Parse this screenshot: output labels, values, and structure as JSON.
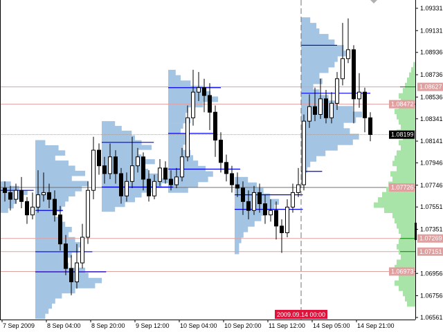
{
  "chart_data": {
    "type": "candlestick",
    "timeframe_hours": 2,
    "y_range": [
      1.06561,
      1.09331
    ],
    "grid": false,
    "colors": {
      "background": "#ffffff",
      "candle": "#000000",
      "bull_body": "#ffffff",
      "bear_body": "#000000",
      "session_profile": "#a4c4e4",
      "session_levels": "#0000ee",
      "total_profile": "#a8e4a8",
      "total_levels": "#008000",
      "level_lines": "#e0a0a0",
      "level_label_bg": "#e0a0a0",
      "current_price_bg": "#000000",
      "time_marker": "#dc143c"
    },
    "y_ticks": [
      "1.09331",
      "1.09131",
      "1.08936",
      "1.08736",
      "1.08536",
      "1.08341",
      "1.08141",
      "1.07946",
      "1.07746",
      "1.07551",
      "1.07351",
      "1.06956",
      "1.06756",
      "1.06561"
    ],
    "x_ticks": [
      {
        "label": "7 Sep 2009",
        "bar": 0
      },
      {
        "label": "8 Sep 04:00",
        "bar": 8
      },
      {
        "label": "8 Sep 20:00",
        "bar": 16
      },
      {
        "label": "9 Sep 12:00",
        "bar": 24
      },
      {
        "label": "10 Sep 04:00",
        "bar": 32
      },
      {
        "label": "10 Sep 20:00",
        "bar": 40
      },
      {
        "label": "11 Sep 12:00",
        "bar": 48
      },
      {
        "label": "14 Sep 05:00",
        "bar": 56
      },
      {
        "label": "14 Sep 21:00",
        "bar": 64
      }
    ],
    "time_marker": {
      "label": "2009.09.14 00:00",
      "bar": 53.5
    },
    "current_price": "1.08199",
    "levels": [
      {
        "price": 1.08627,
        "label": "1.08627"
      },
      {
        "price": 1.08472,
        "label": "1.08472"
      },
      {
        "price": 1.07726,
        "label": "1.07726"
      },
      {
        "price": 1.07269,
        "label": "1.07269"
      },
      {
        "price": 1.07151,
        "label": "1.07151"
      },
      {
        "price": 1.06973,
        "label": "1.06973"
      }
    ],
    "ohlc": [
      [
        1.0772,
        1.0778,
        1.076,
        1.0768
      ],
      [
        1.0768,
        1.0774,
        1.0752,
        1.0762
      ],
      [
        1.0762,
        1.0776,
        1.0758,
        1.077
      ],
      [
        1.077,
        1.0782,
        1.0754,
        1.076
      ],
      [
        1.076,
        1.0764,
        1.074,
        1.0748
      ],
      [
        1.0748,
        1.0768,
        1.0744,
        1.0755
      ],
      [
        1.0755,
        1.0788,
        1.075,
        1.0766
      ],
      [
        1.0766,
        1.0786,
        1.076,
        1.0768
      ],
      [
        1.0768,
        1.0776,
        1.0754,
        1.0762
      ],
      [
        1.0762,
        1.077,
        1.0742,
        1.0748
      ],
      [
        1.0748,
        1.0756,
        1.0716,
        1.0722
      ],
      [
        1.0722,
        1.073,
        1.0694,
        1.07
      ],
      [
        1.07,
        1.0712,
        1.0676,
        1.0688
      ],
      [
        1.0688,
        1.0722,
        1.0682,
        1.0705
      ],
      [
        1.0705,
        1.074,
        1.07,
        1.0728
      ],
      [
        1.0728,
        1.0778,
        1.0722,
        1.077
      ],
      [
        1.077,
        1.0818,
        1.0762,
        1.0806
      ],
      [
        1.0806,
        1.0812,
        1.0784,
        1.0792
      ],
      [
        1.0792,
        1.08,
        1.0776,
        1.0785
      ],
      [
        1.0785,
        1.0812,
        1.078,
        1.08
      ],
      [
        1.08,
        1.0806,
        1.0776,
        1.0785
      ],
      [
        1.0785,
        1.079,
        1.0758,
        1.0765
      ],
      [
        1.0765,
        1.0786,
        1.076,
        1.0778
      ],
      [
        1.0778,
        1.0818,
        1.0772,
        1.0792
      ],
      [
        1.0792,
        1.0808,
        1.0786,
        1.08
      ],
      [
        1.08,
        1.0804,
        1.077,
        1.078
      ],
      [
        1.078,
        1.0788,
        1.076,
        1.0765
      ],
      [
        1.0765,
        1.0784,
        1.0762,
        1.0778
      ],
      [
        1.0778,
        1.0798,
        1.0774,
        1.079
      ],
      [
        1.079,
        1.0796,
        1.0776,
        1.078
      ],
      [
        1.078,
        1.0788,
        1.077,
        1.0775
      ],
      [
        1.0775,
        1.079,
        1.0772,
        1.0782
      ],
      [
        1.0782,
        1.0808,
        1.0778,
        1.08
      ],
      [
        1.08,
        1.0846,
        1.0796,
        1.0835
      ],
      [
        1.0835,
        1.0878,
        1.0828,
        1.0858
      ],
      [
        1.0858,
        1.0876,
        1.085,
        1.0862
      ],
      [
        1.0862,
        1.087,
        1.084,
        1.0855
      ],
      [
        1.0855,
        1.0866,
        1.0824,
        1.084
      ],
      [
        1.084,
        1.0846,
        1.08,
        1.0815
      ],
      [
        1.0815,
        1.0822,
        1.0786,
        1.0795
      ],
      [
        1.0795,
        1.0802,
        1.0778,
        1.0785
      ],
      [
        1.0785,
        1.0792,
        1.0768,
        1.0775
      ],
      [
        1.0775,
        1.0786,
        1.0764,
        1.0772
      ],
      [
        1.0772,
        1.0778,
        1.0748,
        1.076
      ],
      [
        1.076,
        1.077,
        1.0744,
        1.0752
      ],
      [
        1.0752,
        1.0774,
        1.0748,
        1.0768
      ],
      [
        1.0768,
        1.0776,
        1.075,
        1.0758
      ],
      [
        1.0758,
        1.0766,
        1.074,
        1.0748
      ],
      [
        1.0748,
        1.0762,
        1.0742,
        1.0752
      ],
      [
        1.0752,
        1.076,
        1.0726,
        1.0738
      ],
      [
        1.0738,
        1.0744,
        1.0714,
        1.0732
      ],
      [
        1.0732,
        1.0762,
        1.0728,
        1.0755
      ],
      [
        1.0755,
        1.0776,
        1.075,
        1.0768
      ],
      [
        1.0768,
        1.079,
        1.0764,
        1.0775
      ],
      [
        1.0775,
        1.0838,
        1.077,
        1.0832
      ],
      [
        1.0832,
        1.0856,
        1.0826,
        1.0845
      ],
      [
        1.0845,
        1.0862,
        1.0832,
        1.0838
      ],
      [
        1.0838,
        1.087,
        1.0834,
        1.0852
      ],
      [
        1.0852,
        1.086,
        1.083,
        1.0835
      ],
      [
        1.0835,
        1.0858,
        1.083,
        1.0848
      ],
      [
        1.0848,
        1.0876,
        1.0842,
        1.087
      ],
      [
        1.087,
        1.092,
        1.0864,
        1.0888
      ],
      [
        1.0888,
        1.0924,
        1.0884,
        1.0896
      ],
      [
        1.0896,
        1.09,
        1.083,
        1.0852
      ],
      [
        1.0852,
        1.0875,
        1.0844,
        1.0858
      ],
      [
        1.0858,
        1.0862,
        1.0822,
        1.0835
      ],
      [
        1.0835,
        1.084,
        1.0814,
        1.082
      ]
    ],
    "session_profiles": [
      {
        "start_bar": -0.4,
        "top": 1.0778,
        "bottom": 1.075,
        "max_bars": 5,
        "volumes": [
          0.4,
          0.7,
          1.0,
          0.8,
          0.6,
          0.5,
          0.3
        ],
        "lines": [
          {
            "price": 1.077,
            "to_bar": 5.2
          }
        ]
      },
      {
        "start_bar": 6,
        "top": 1.0815,
        "bottom": 1.0655,
        "max_bars": 12,
        "volumes": [
          0.15,
          0.35,
          0.45,
          0.3,
          0.5,
          0.6,
          0.75,
          0.55,
          0.8,
          0.7,
          0.6,
          0.5,
          0.45,
          0.4,
          0.3,
          0.35,
          0.45,
          0.55,
          0.5,
          0.6,
          0.7,
          0.65,
          0.55,
          0.45,
          0.5,
          0.75,
          0.8,
          1.0,
          0.9,
          0.6,
          0.4,
          0.3,
          0.25,
          0.2,
          0.15
        ],
        "lines": [
          {
            "price": 1.0752,
            "to_bar": 10.5
          },
          {
            "price": 1.0715,
            "to_bar": 15.8
          },
          {
            "price": 1.0697,
            "to_bar": 18.3
          }
        ]
      },
      {
        "start_bar": 18,
        "top": 1.0832,
        "bottom": 1.0751,
        "max_bars": 12,
        "volumes": [
          0.2,
          0.3,
          0.45,
          0.5,
          0.6,
          0.75,
          0.55,
          0.6,
          0.8,
          0.65,
          0.7,
          0.85,
          1.0,
          0.9,
          0.75,
          0.6,
          0.5,
          0.35,
          0.2
        ],
        "lines": [
          {
            "price": 1.0813,
            "to_bar": 26.9
          },
          {
            "price": 1.0773,
            "to_bar": 30.4
          }
        ]
      },
      {
        "start_bar": 30,
        "top": 1.0878,
        "bottom": 1.0768,
        "max_bars": 9,
        "volumes": [
          0.15,
          0.25,
          0.45,
          0.7,
          0.85,
          1.0,
          0.7,
          0.4,
          0.35,
          0.45,
          0.3,
          0.25,
          0.35,
          0.4,
          0.3,
          0.45,
          0.5,
          0.6,
          0.75,
          0.9,
          0.8,
          0.6,
          0.4
        ],
        "lines": [
          {
            "price": 1.0862,
            "to_bar": 39
          },
          {
            "price": 1.0821,
            "to_bar": 37.8
          },
          {
            "price": 1.0789,
            "to_bar": 42.5
          }
        ]
      },
      {
        "start_bar": 42,
        "top": 1.0782,
        "bottom": 1.0713,
        "max_bars": 8,
        "volumes": [
          0.3,
          0.5,
          0.65,
          0.8,
          1.0,
          0.9,
          0.7,
          0.6,
          0.45,
          0.3,
          0.2,
          0.15,
          0.1,
          0.1
        ],
        "lines": [
          {
            "price": 1.0766,
            "to_bar": 53.8
          },
          {
            "price": 1.0753,
            "to_bar": 53.8
          }
        ]
      },
      {
        "start_bar": 54,
        "top": 1.0925,
        "bottom": 1.0776,
        "max_bars": 11,
        "volumes": [
          0.15,
          0.25,
          0.3,
          0.45,
          0.55,
          0.7,
          0.75,
          0.6,
          0.55,
          0.45,
          0.3,
          0.35,
          0.2,
          0.3,
          0.45,
          0.6,
          0.85,
          1.0,
          0.9,
          0.7,
          0.8,
          0.95,
          0.85,
          0.6,
          0.4,
          0.25,
          0.15,
          0.1,
          0.08,
          0.08
        ],
        "lines": [
          {
            "price": 1.09,
            "to_bar": 60
          },
          {
            "price": 1.0857,
            "to_bar": 66
          },
          {
            "price": 1.0787,
            "to_bar": 57.3
          }
        ]
      }
    ],
    "total_profile": {
      "top": 1.0885,
      "bottom": 1.0666,
      "volumes": [
        0.05,
        0.1,
        0.15,
        0.2,
        0.25,
        0.3,
        0.4,
        0.35,
        0.4,
        0.5,
        0.45,
        0.4,
        0.35,
        0.45,
        0.3,
        0.4,
        0.35,
        0.45,
        0.5,
        0.55,
        0.45,
        0.6,
        0.55,
        0.65,
        0.7,
        0.8,
        0.9,
        1.0,
        0.75,
        0.55,
        0.5,
        0.45,
        0.4,
        0.35,
        0.4,
        0.45,
        0.4,
        0.35,
        0.45,
        0.5,
        0.45,
        0.4,
        0.5,
        0.4,
        0.3,
        0.25,
        0.2
      ],
      "lines": [
        1.08627,
        1.08472,
        1.07726,
        1.07269,
        1.07151,
        1.06973
      ]
    }
  }
}
